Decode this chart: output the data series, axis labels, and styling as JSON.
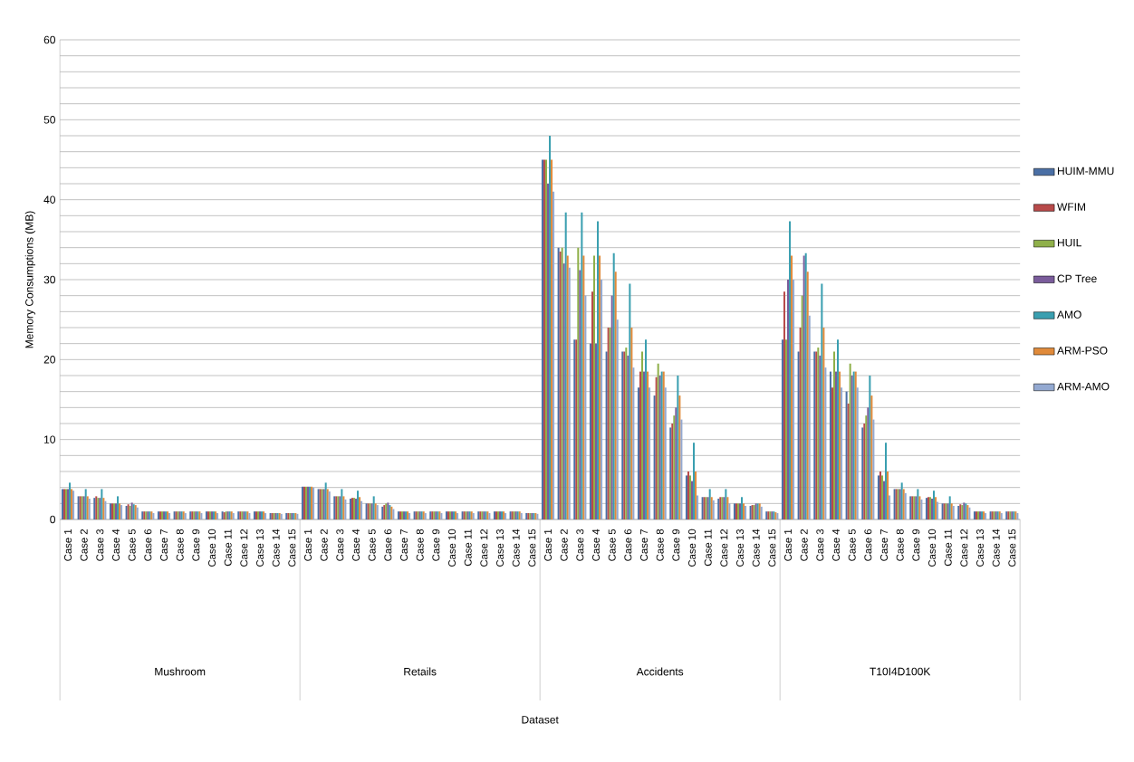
{
  "chart_data": {
    "type": "bar",
    "ylabel": "Memory Consumptions (MB)",
    "categories": [
      "Case 1",
      "Case 2",
      "Case 3",
      "Case 4",
      "Case 5",
      "Case 6",
      "Case 7",
      "Case 8",
      "Case 9",
      "Case 10",
      "Case 11",
      "Case 12",
      "Case 13",
      "Case 14",
      "Case 15",
      "Case 1",
      "Case 2",
      "Case 3",
      "Case 4",
      "Case 5",
      "Case 6",
      "Case 7",
      "Case 8",
      "Case 9",
      "Case 10",
      "Case 11",
      "Case 12",
      "Case 13",
      "Case 14",
      "Case 15",
      "Case 1",
      "Case 2",
      "Case 3",
      "Case 4",
      "Case 5",
      "Case 6",
      "Case 7",
      "Case 8",
      "Case 9",
      "Case 10",
      "Case 11",
      "Case 12",
      "Case 13",
      "Case 14",
      "Case 15",
      "Case 1",
      "Case 2",
      "Case 3",
      "Case 4",
      "Case 5",
      "Case 6",
      "Case 7",
      "Case 8",
      "Case 9",
      "Case 10",
      "Case 11",
      "Case 12",
      "Case 13",
      "Case 14",
      "Case 15"
    ],
    "annotations": [
      "Mushroom",
      "Retails",
      "Accidents",
      "T10I4D100K",
      "Dataset"
    ],
    "series": [
      {
        "name": "HUIM-MMU",
        "color": "#4a6fa5",
        "values": [
          3.8,
          2.9,
          2.7,
          2.0,
          1.7,
          1.0,
          1.0,
          1.0,
          1.0,
          1.0,
          1.0,
          1.0,
          1.0,
          0.8,
          0.8,
          4.1,
          3.8,
          2.9,
          2.6,
          2.0,
          1.6,
          1.0,
          1.0,
          1.0,
          1.0,
          1.0,
          1.0,
          1.0,
          1.0,
          0.8,
          45,
          34,
          22.5,
          22,
          21,
          21,
          16.5,
          15.5,
          11.5,
          5.5,
          2.8,
          2.6,
          2.0,
          1.7,
          1.0,
          22.5,
          21,
          21,
          18.5,
          16,
          11.5,
          5.5,
          3.8,
          2.9,
          2.7,
          2.0,
          1.7,
          1.0,
          1.0,
          1.0
        ]
      },
      {
        "name": "WFIM",
        "color": "#b84a4a",
        "values": [
          3.8,
          2.9,
          2.9,
          2.0,
          1.9,
          1.0,
          1.0,
          1.0,
          1.0,
          1.0,
          0.9,
          1.0,
          1.0,
          0.8,
          0.8,
          4.1,
          3.8,
          2.9,
          2.7,
          2.0,
          1.8,
          1.0,
          1.0,
          1.0,
          1.0,
          1.0,
          1.0,
          1.0,
          1.0,
          0.8,
          45,
          33.5,
          22.5,
          28.5,
          24,
          21,
          18.5,
          17.8,
          12,
          6,
          2.8,
          2.8,
          2.0,
          1.8,
          1.0,
          28.5,
          24,
          21,
          16.5,
          14.5,
          12,
          6,
          3.8,
          2.9,
          2.8,
          2.0,
          1.9,
          1.0,
          1.0,
          1.0
        ]
      },
      {
        "name": "HUIL",
        "color": "#8fb04a",
        "values": [
          3.8,
          2.9,
          2.7,
          2.0,
          1.7,
          1.0,
          1.0,
          1.0,
          1.0,
          1.0,
          1.0,
          1.0,
          1.0,
          0.8,
          0.8,
          4.1,
          3.8,
          2.9,
          2.7,
          2.0,
          2.0,
          1.0,
          1.0,
          1.0,
          1.0,
          1.0,
          1.0,
          1.0,
          1.0,
          0.8,
          45,
          34,
          34,
          33,
          24,
          21.5,
          21,
          19.5,
          13,
          5.5,
          2.8,
          2.8,
          2.0,
          1.8,
          1.0,
          22.5,
          28,
          21.5,
          21,
          19.5,
          13,
          5.5,
          3.8,
          2.9,
          2.8,
          2.0,
          1.8,
          1.0,
          1.0,
          1.0
        ]
      },
      {
        "name": "CP Tree",
        "color": "#7a5c9b",
        "values": [
          3.8,
          2.9,
          2.7,
          2.0,
          2.1,
          1.0,
          1.0,
          1.0,
          1.0,
          1.0,
          1.0,
          1.0,
          1.0,
          0.8,
          0.8,
          4.1,
          3.8,
          2.9,
          2.6,
          2.0,
          2.1,
          1.0,
          1.0,
          1.0,
          1.0,
          1.0,
          1.0,
          1.0,
          1.0,
          0.8,
          42,
          32,
          31.2,
          22,
          28,
          20.5,
          18.5,
          18,
          14,
          4.8,
          2.8,
          2.8,
          2.0,
          2.0,
          1.0,
          30,
          33,
          20.5,
          18.5,
          18,
          14,
          4.8,
          3.8,
          2.9,
          2.6,
          2.0,
          2.1,
          1.0,
          1.0,
          1.0
        ]
      },
      {
        "name": "AMO",
        "color": "#3a9fb0",
        "values": [
          4.6,
          3.8,
          3.8,
          2.9,
          1.9,
          1.0,
          1.0,
          1.0,
          1.0,
          1.0,
          1.0,
          1.0,
          1.0,
          0.8,
          0.8,
          4.1,
          4.6,
          3.8,
          3.6,
          2.9,
          1.8,
          1.0,
          1.0,
          1.0,
          1.0,
          1.0,
          1.0,
          1.0,
          1.0,
          0.8,
          48,
          38.4,
          38.4,
          37.3,
          33.3,
          29.5,
          22.5,
          18.5,
          18,
          9.6,
          3.8,
          3.8,
          2.8,
          2.0,
          1.0,
          37.3,
          33.3,
          29.5,
          22.5,
          18.5,
          18,
          9.6,
          4.6,
          3.8,
          3.6,
          2.9,
          2.0,
          1.0,
          1.0,
          1.0
        ]
      },
      {
        "name": "ARM-PSO",
        "color": "#e08a3a",
        "values": [
          3.8,
          2.9,
          2.7,
          2.0,
          1.8,
          1.0,
          1.0,
          1.0,
          1.0,
          1.0,
          1.0,
          1.0,
          1.0,
          0.8,
          0.8,
          4.1,
          3.8,
          2.9,
          2.8,
          2.0,
          1.6,
          1.0,
          1.0,
          1.0,
          1.0,
          1.0,
          1.0,
          1.0,
          1.0,
          0.8,
          45,
          33,
          33,
          33,
          31,
          24,
          18.5,
          18.5,
          15.5,
          6,
          2.8,
          2.8,
          2.0,
          2.0,
          0.9,
          33,
          31,
          24,
          18.5,
          18.5,
          15.5,
          6,
          3.8,
          2.9,
          2.8,
          2.0,
          1.8,
          1.0,
          1.0,
          1.0
        ]
      },
      {
        "name": "ARM-AMO",
        "color": "#93a9d1",
        "values": [
          3.6,
          2.6,
          2.3,
          1.8,
          1.5,
          0.8,
          0.8,
          0.8,
          0.8,
          0.8,
          0.8,
          0.8,
          0.8,
          0.7,
          0.7,
          4.0,
          3.5,
          2.5,
          2.3,
          1.8,
          1.3,
          0.8,
          0.8,
          0.8,
          0.8,
          0.8,
          0.8,
          0.8,
          0.8,
          0.7,
          41,
          31.5,
          28,
          30,
          25,
          19,
          16.5,
          16.5,
          12.5,
          3,
          2.4,
          2.0,
          1.7,
          1.6,
          0.8,
          30,
          25.5,
          19,
          16.5,
          16.5,
          12.5,
          3,
          3.3,
          2.5,
          2.2,
          1.7,
          1.5,
          0.8,
          0.8,
          0.8
        ]
      }
    ],
    "ylim": [
      0,
      60
    ],
    "yticks": [
      0,
      {
        "value": 2,
        "label": null
      },
      {
        "value": 4,
        "label": null
      },
      {
        "value": 6,
        "label": null
      },
      {
        "value": 8,
        "label": null
      },
      10,
      {
        "value": 12,
        "label": null
      },
      {
        "value": 14,
        "label": null
      },
      {
        "value": 16,
        "label": null
      },
      {
        "value": 18,
        "label": null
      },
      20,
      {
        "value": 22,
        "label": null
      },
      {
        "value": 24,
        "label": null
      },
      {
        "value": 26,
        "label": null
      },
      {
        "value": 28,
        "label": null
      },
      30,
      {
        "value": 32,
        "label": null
      },
      {
        "value": 34,
        "label": null
      },
      {
        "value": 36,
        "label": null
      },
      {
        "value": 38,
        "label": null
      },
      40,
      {
        "value": 42,
        "label": null
      },
      {
        "value": 44,
        "label": null
      },
      {
        "value": 46,
        "label": null
      },
      {
        "value": 48,
        "label": null
      },
      50,
      {
        "value": 52,
        "label": null
      },
      {
        "value": 54,
        "label": null
      },
      {
        "value": 56,
        "label": null
      },
      {
        "value": 58,
        "label": null
      },
      60
    ],
    "grid": "y",
    "legend": "right"
  }
}
